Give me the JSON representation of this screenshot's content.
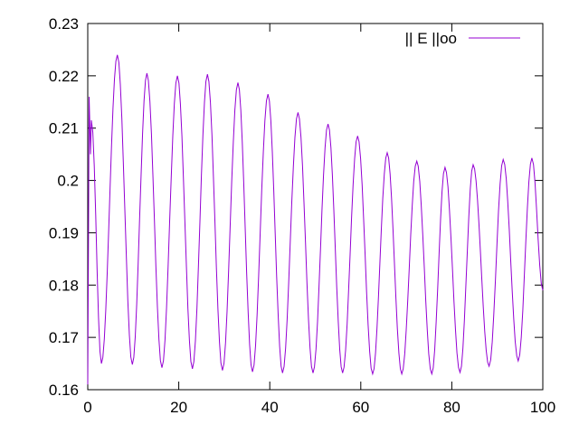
{
  "chart_data": {
    "type": "line",
    "title": "",
    "xlabel": "",
    "ylabel": "",
    "xlim": [
      0,
      100
    ],
    "ylim": [
      0.16,
      0.23
    ],
    "xticks": [
      0,
      20,
      40,
      60,
      80,
      100
    ],
    "xtick_labels": [
      "0",
      "20",
      "40",
      "60",
      "80",
      "100"
    ],
    "yticks": [
      0.16,
      0.17,
      0.18,
      0.19,
      0.2,
      0.21,
      0.22,
      0.23
    ],
    "ytick_labels": [
      "0.16",
      "0.17",
      "0.18",
      "0.19",
      "0.2",
      "0.21",
      "0.22",
      "0.23"
    ],
    "grid": false,
    "legend_position": "top-right",
    "series": [
      {
        "name": "|| E ||oo",
        "color": "#9400d3",
        "note": "local extrema of oscillating curve",
        "x": [
          0,
          0.3,
          0.6,
          0.8,
          3,
          6.5,
          9.8,
          13,
          16.3,
          19.7,
          23,
          26.3,
          29.6,
          33,
          36.2,
          39.6,
          42.8,
          46.2,
          49.5,
          52.8,
          56,
          59.3,
          62.6,
          65.8,
          69,
          72.3,
          75.6,
          78.5,
          81.8,
          84.7,
          88.2,
          91.3,
          94.6,
          97.6,
          100
        ],
        "y": [
          0.161,
          0.216,
          0.205,
          0.2115,
          0.165,
          0.224,
          0.1648,
          0.2205,
          0.1642,
          0.22,
          0.164,
          0.2203,
          0.1637,
          0.2187,
          0.1634,
          0.2165,
          0.1632,
          0.213,
          0.1632,
          0.2108,
          0.1632,
          0.2085,
          0.163,
          0.2053,
          0.163,
          0.2037,
          0.163,
          0.2025,
          0.1633,
          0.203,
          0.1645,
          0.204,
          0.1655,
          0.2043,
          0.179
        ]
      }
    ]
  }
}
